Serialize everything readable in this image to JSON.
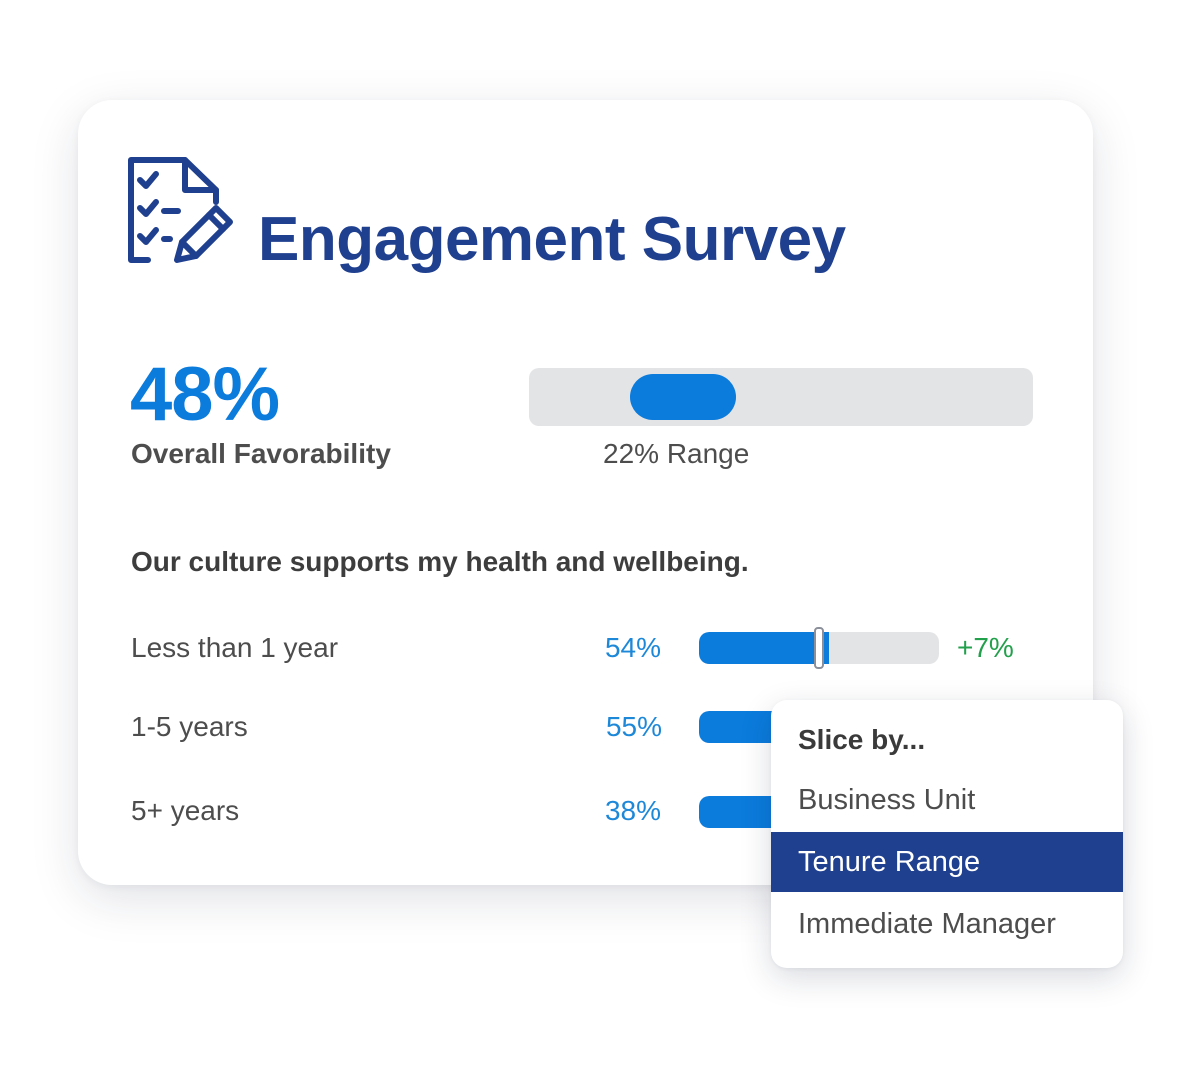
{
  "title": "Engagement Survey",
  "overall": {
    "percent_label": "48%",
    "label": "Overall Favorability",
    "range_label": "22% Range",
    "range_start_fraction": 0.2,
    "range_end_fraction": 0.41
  },
  "question": "Our culture supports my health and wellbeing.",
  "rows": [
    {
      "label": "Less than 1 year",
      "percent_label": "54%",
      "value": 0.54,
      "change": "+7%"
    },
    {
      "label": "1-5 years",
      "percent_label": "55%",
      "value": 0.55
    },
    {
      "label": "5+ years",
      "percent_label": "38%",
      "value": 0.38
    }
  ],
  "slice_menu": {
    "header": "Slice by...",
    "options": [
      "Business Unit",
      "Tenure Range",
      "Immediate Manager"
    ],
    "selected": "Tenure Range"
  },
  "colors": {
    "title": "#1f3f8f",
    "accent": "#0b7bdc",
    "positive": "#22a04b",
    "selected_bg": "#1f3f8f"
  },
  "icons": {
    "title_icon": "survey-checklist-pencil-icon"
  }
}
